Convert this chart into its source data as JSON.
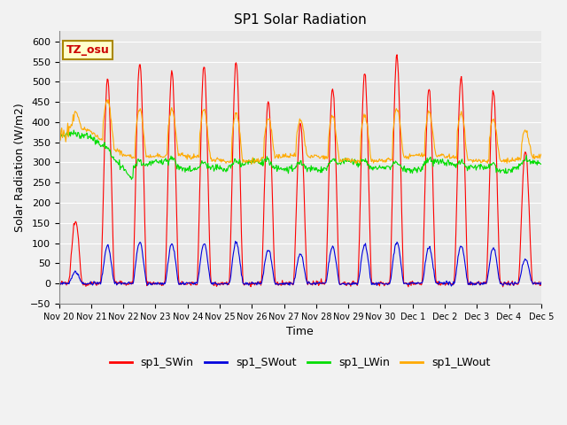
{
  "title": "SP1 Solar Radiation",
  "xlabel": "Time",
  "ylabel": "Solar Radiation (W/m2)",
  "ylim": [
    -50,
    625
  ],
  "yticks": [
    -50,
    0,
    50,
    100,
    150,
    200,
    250,
    300,
    350,
    400,
    450,
    500,
    550,
    600
  ],
  "colors": {
    "SWin": "#ff0000",
    "SWout": "#0000dd",
    "LWin": "#00dd00",
    "LWout": "#ffaa00"
  },
  "legend_labels": [
    "sp1_SWin",
    "sp1_SWout",
    "sp1_LWin",
    "sp1_LWout"
  ],
  "tz_label": "TZ_osu",
  "plot_bg_color": "#e8e8e8",
  "fig_bg_color": "#f2f2f2",
  "grid_color": "#ffffff"
}
